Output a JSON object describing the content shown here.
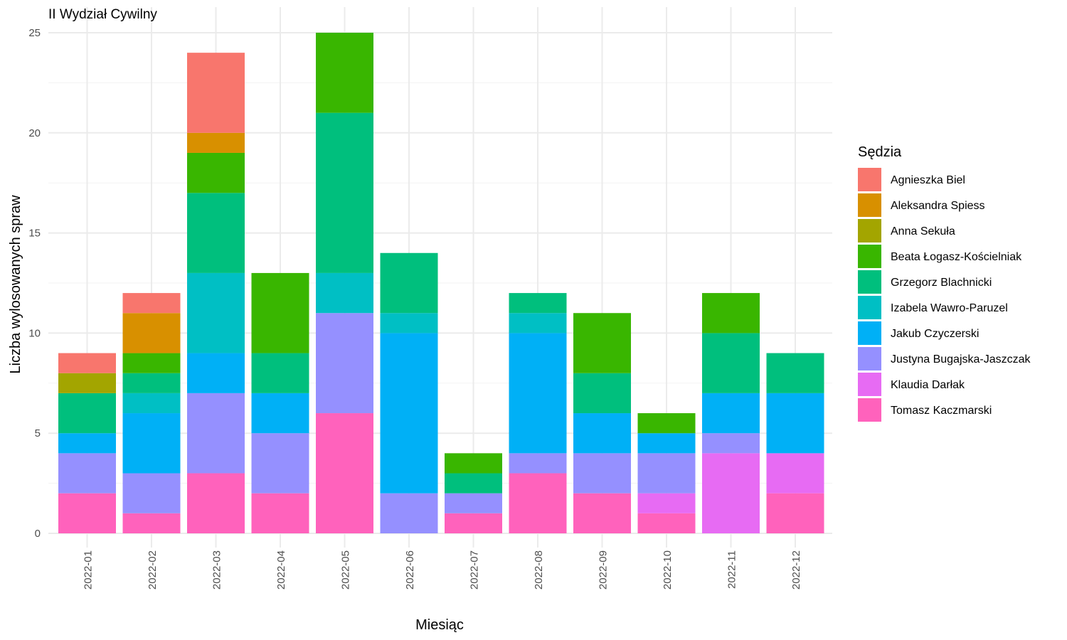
{
  "chart_data": {
    "type": "bar",
    "stacked": true,
    "title": "II Wydział Cywilny",
    "xlabel": "Miesiąc",
    "ylabel": "Liczba wylosowanych spraw",
    "ylim": [
      0,
      25
    ],
    "yticks": [
      0,
      5,
      10,
      15,
      20,
      25
    ],
    "grid": true,
    "legend": {
      "title": "Sędzia",
      "position": "right"
    },
    "categories": [
      "2022-01",
      "2022-02",
      "2022-03",
      "2022-04",
      "2022-05",
      "2022-06",
      "2022-07",
      "2022-08",
      "2022-09",
      "2022-10",
      "2022-11",
      "2022-12"
    ],
    "series": [
      {
        "name": "Agnieszka Biel",
        "color": "#F8766D",
        "values": [
          1,
          1,
          4,
          0,
          0,
          0,
          0,
          0,
          0,
          0,
          0,
          0
        ]
      },
      {
        "name": "Aleksandra Spiess",
        "color": "#D89000",
        "values": [
          0,
          2,
          1,
          0,
          0,
          0,
          0,
          0,
          0,
          0,
          0,
          0
        ]
      },
      {
        "name": "Anna Sekuła",
        "color": "#A3A500",
        "values": [
          1,
          0,
          0,
          0,
          0,
          0,
          0,
          0,
          0,
          0,
          0,
          0
        ]
      },
      {
        "name": "Beata Łogasz-Kościelniak",
        "color": "#39B600",
        "values": [
          0,
          1,
          2,
          4,
          4,
          0,
          1,
          0,
          3,
          1,
          2,
          0
        ]
      },
      {
        "name": "Grzegorz Blachnicki",
        "color": "#00BF7D",
        "values": [
          2,
          1,
          4,
          2,
          8,
          3,
          1,
          1,
          2,
          0,
          3,
          2
        ]
      },
      {
        "name": "Izabela Wawro-Paruzel",
        "color": "#00BFC4",
        "values": [
          0,
          1,
          4,
          0,
          2,
          1,
          0,
          1,
          0,
          0,
          0,
          0
        ]
      },
      {
        "name": "Jakub Czyczerski",
        "color": "#00B0F6",
        "values": [
          1,
          3,
          2,
          2,
          0,
          8,
          0,
          6,
          2,
          1,
          2,
          3
        ]
      },
      {
        "name": "Justyna Bugajska-Jaszczak",
        "color": "#9590FF",
        "values": [
          2,
          2,
          4,
          3,
          5,
          2,
          1,
          1,
          2,
          2,
          1,
          0
        ]
      },
      {
        "name": "Klaudia Darłak",
        "color": "#E76BF3",
        "values": [
          0,
          0,
          0,
          0,
          0,
          0,
          0,
          0,
          0,
          1,
          4,
          2
        ]
      },
      {
        "name": "Tomasz Kaczmarski",
        "color": "#FF62BC",
        "values": [
          2,
          1,
          3,
          2,
          6,
          0,
          1,
          3,
          2,
          1,
          0,
          2
        ]
      }
    ]
  }
}
